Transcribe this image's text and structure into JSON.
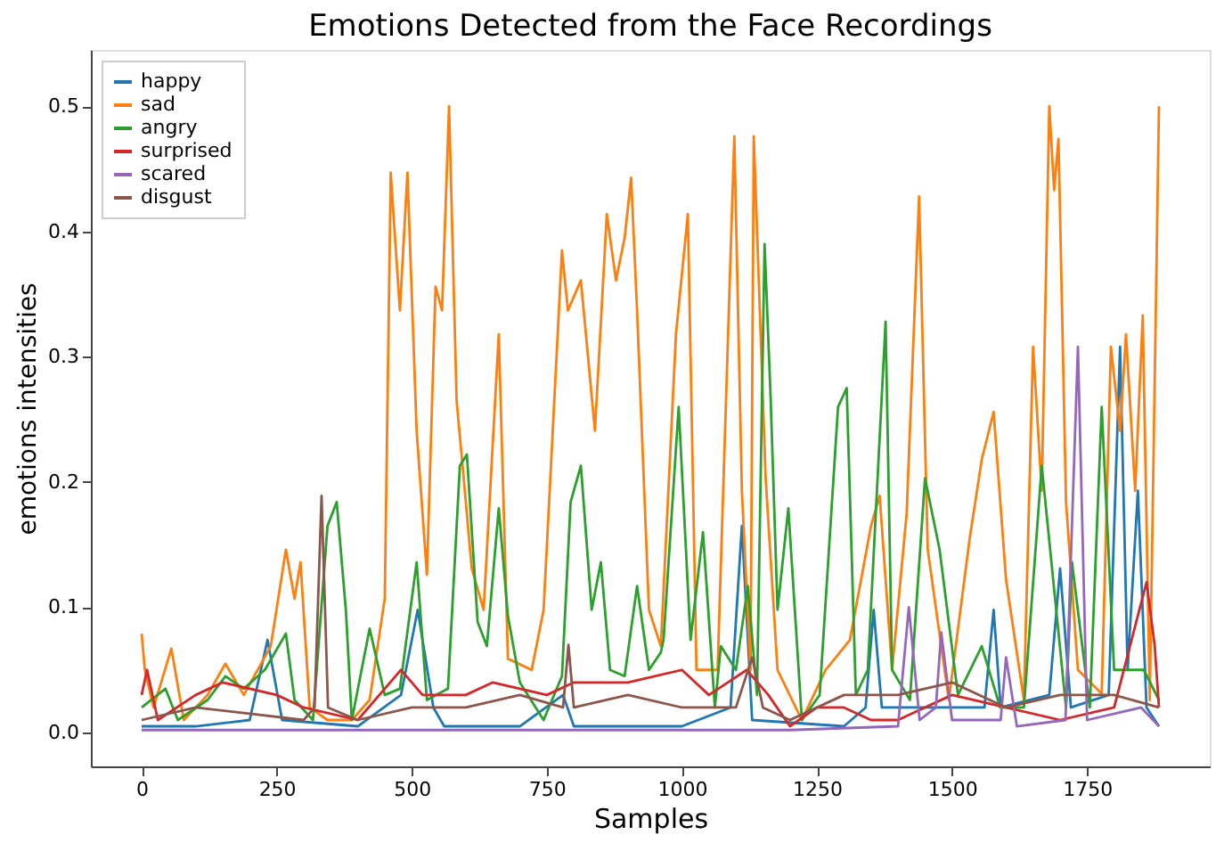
{
  "chart_data": {
    "type": "line",
    "title": "Emotions Detected from the Face Recordings",
    "xlabel": "Samples",
    "ylabel": "emotions intensities",
    "xlim": [
      -94,
      1977
    ],
    "ylim": [
      -0.027,
      0.545
    ],
    "xticks": [
      0,
      250,
      500,
      750,
      1000,
      1250,
      1500,
      1750
    ],
    "yticks": [
      {
        "value": 0,
        "label": "0.0"
      },
      {
        "value": 0.1,
        "label": "0.1"
      },
      {
        "value": 0.2,
        "label": "0.2"
      },
      {
        "value": 0.3,
        "label": "0.3"
      },
      {
        "value": 0.4,
        "label": "0.4"
      },
      {
        "value": 0.5,
        "label": "0.5"
      }
    ],
    "grid": false,
    "legend": "top left",
    "marker": "none",
    "line_style": "solid",
    "series": [
      {
        "name": "happy",
        "color": "#1f77b4",
        "x": [
          0,
          100,
          200,
          233,
          260,
          400,
          480,
          511,
          540,
          560,
          700,
          780,
          800,
          1000,
          1090,
          1111,
          1130,
          1300,
          1340,
          1355,
          1370,
          1560,
          1577,
          1590,
          1680,
          1700,
          1720,
          1790,
          1811,
          1825,
          1844,
          1860,
          1883
        ],
        "values": [
          0.005,
          0.005,
          0.01,
          0.074,
          0.01,
          0.005,
          0.03,
          0.098,
          0.02,
          0.005,
          0.005,
          0.03,
          0.005,
          0.005,
          0.02,
          0.165,
          0.01,
          0.005,
          0.02,
          0.098,
          0.02,
          0.02,
          0.098,
          0.02,
          0.03,
          0.131,
          0.02,
          0.03,
          0.308,
          0.05,
          0.193,
          0.02,
          0.005
        ]
      },
      {
        "name": "sad",
        "color": "#ff7f0e",
        "x": [
          0,
          6,
          22,
          55,
          78,
          122,
          155,
          189,
          239,
          267,
          283,
          294,
          311,
          344,
          389,
          422,
          450,
          461,
          478,
          492,
          509,
          528,
          544,
          556,
          569,
          583,
          594,
          611,
          633,
          661,
          678,
          722,
          744,
          778,
          789,
          813,
          839,
          861,
          878,
          894,
          906,
          917,
          939,
          961,
          989,
          1011,
          1027,
          1066,
          1097,
          1111,
          1127,
          1133,
          1155,
          1177,
          1222,
          1266,
          1311,
          1350,
          1366,
          1389,
          1416,
          1439,
          1455,
          1494,
          1533,
          1555,
          1577,
          1600,
          1633,
          1650,
          1666,
          1680,
          1689,
          1697,
          1711,
          1733,
          1777,
          1794,
          1811,
          1822,
          1839,
          1853,
          1866,
          1883
        ],
        "values": [
          0.079,
          0.05,
          0.02,
          0.067,
          0.01,
          0.03,
          0.055,
          0.03,
          0.069,
          0.146,
          0.107,
          0.136,
          0.02,
          0.01,
          0.01,
          0.026,
          0.107,
          0.447,
          0.337,
          0.447,
          0.241,
          0.126,
          0.356,
          0.337,
          0.5,
          0.265,
          0.213,
          0.131,
          0.098,
          0.318,
          0.059,
          0.05,
          0.098,
          0.385,
          0.337,
          0.361,
          0.241,
          0.414,
          0.361,
          0.395,
          0.443,
          0.337,
          0.098,
          0.069,
          0.318,
          0.414,
          0.05,
          0.05,
          0.476,
          0.193,
          0.05,
          0.476,
          0.203,
          0.05,
          0.01,
          0.05,
          0.074,
          0.165,
          0.189,
          0.05,
          0.175,
          0.428,
          0.146,
          0.026,
          0.156,
          0.218,
          0.256,
          0.122,
          0.026,
          0.308,
          0.193,
          0.5,
          0.433,
          0.474,
          0.184,
          0.05,
          0.031,
          0.308,
          0.241,
          0.318,
          0.193,
          0.333,
          0.026,
          0.5
        ]
      },
      {
        "name": "angry",
        "color": "#2ca02c",
        "x": [
          0,
          44,
          67,
          122,
          155,
          189,
          228,
          267,
          283,
          317,
          344,
          361,
          378,
          389,
          422,
          450,
          478,
          509,
          528,
          567,
          589,
          602,
          622,
          639,
          661,
          678,
          700,
          744,
          778,
          794,
          813,
          833,
          850,
          867,
          894,
          917,
          939,
          961,
          966,
          994,
          1016,
          1039,
          1061,
          1072,
          1100,
          1122,
          1139,
          1153,
          1164,
          1177,
          1197,
          1222,
          1255,
          1289,
          1305,
          1322,
          1344,
          1377,
          1389,
          1422,
          1450,
          1477,
          1511,
          1555,
          1589,
          1633,
          1666,
          1711,
          1722,
          1755,
          1777,
          1800,
          1855,
          1883
        ],
        "values": [
          0.02,
          0.035,
          0.01,
          0.026,
          0.045,
          0.035,
          0.05,
          0.079,
          0.026,
          0.01,
          0.165,
          0.184,
          0.098,
          0.01,
          0.083,
          0.03,
          0.035,
          0.136,
          0.026,
          0.035,
          0.213,
          0.222,
          0.088,
          0.069,
          0.179,
          0.093,
          0.04,
          0.01,
          0.045,
          0.184,
          0.213,
          0.098,
          0.136,
          0.05,
          0.045,
          0.117,
          0.05,
          0.064,
          0.074,
          0.26,
          0.074,
          0.16,
          0.02,
          0.069,
          0.05,
          0.117,
          0.03,
          0.39,
          0.27,
          0.098,
          0.179,
          0.01,
          0.03,
          0.26,
          0.275,
          0.03,
          0.05,
          0.328,
          0.05,
          0.026,
          0.203,
          0.146,
          0.03,
          0.069,
          0.02,
          0.02,
          0.213,
          0.02,
          0.136,
          0.02,
          0.26,
          0.05,
          0.05,
          0.026
        ]
      },
      {
        "name": "surprised",
        "color": "#d62728",
        "x": [
          0,
          10,
          30,
          100,
          150,
          250,
          300,
          400,
          480,
          520,
          600,
          650,
          750,
          800,
          900,
          1000,
          1050,
          1120,
          1160,
          1200,
          1250,
          1300,
          1350,
          1400,
          1500,
          1600,
          1700,
          1800,
          1860,
          1875,
          1883
        ],
        "values": [
          0.03,
          0.05,
          0.01,
          0.03,
          0.04,
          0.03,
          0.02,
          0.01,
          0.05,
          0.03,
          0.03,
          0.04,
          0.03,
          0.04,
          0.04,
          0.05,
          0.03,
          0.05,
          0.03,
          0.005,
          0.02,
          0.02,
          0.01,
          0.01,
          0.03,
          0.02,
          0.01,
          0.02,
          0.12,
          0.07,
          0.02
        ]
      },
      {
        "name": "scared",
        "color": "#9467bd",
        "x": [
          0,
          300,
          600,
          900,
          1200,
          1400,
          1420,
          1440,
          1470,
          1480,
          1500,
          1590,
          1600,
          1620,
          1710,
          1733,
          1750,
          1850,
          1883
        ],
        "values": [
          0.002,
          0.002,
          0.002,
          0.002,
          0.002,
          0.005,
          0.1,
          0.01,
          0.02,
          0.08,
          0.01,
          0.01,
          0.06,
          0.005,
          0.01,
          0.308,
          0.01,
          0.02,
          0.005
        ]
      },
      {
        "name": "disgust",
        "color": "#8c564b",
        "x": [
          0,
          100,
          200,
          300,
          320,
          333,
          345,
          400,
          500,
          600,
          700,
          780,
          790,
          800,
          900,
          1000,
          1100,
          1130,
          1150,
          1200,
          1300,
          1400,
          1500,
          1600,
          1700,
          1800,
          1883
        ],
        "values": [
          0.01,
          0.02,
          0.015,
          0.01,
          0.02,
          0.189,
          0.02,
          0.01,
          0.02,
          0.02,
          0.03,
          0.02,
          0.07,
          0.02,
          0.03,
          0.02,
          0.02,
          0.06,
          0.02,
          0.01,
          0.03,
          0.03,
          0.04,
          0.02,
          0.03,
          0.03,
          0.02
        ]
      }
    ]
  }
}
